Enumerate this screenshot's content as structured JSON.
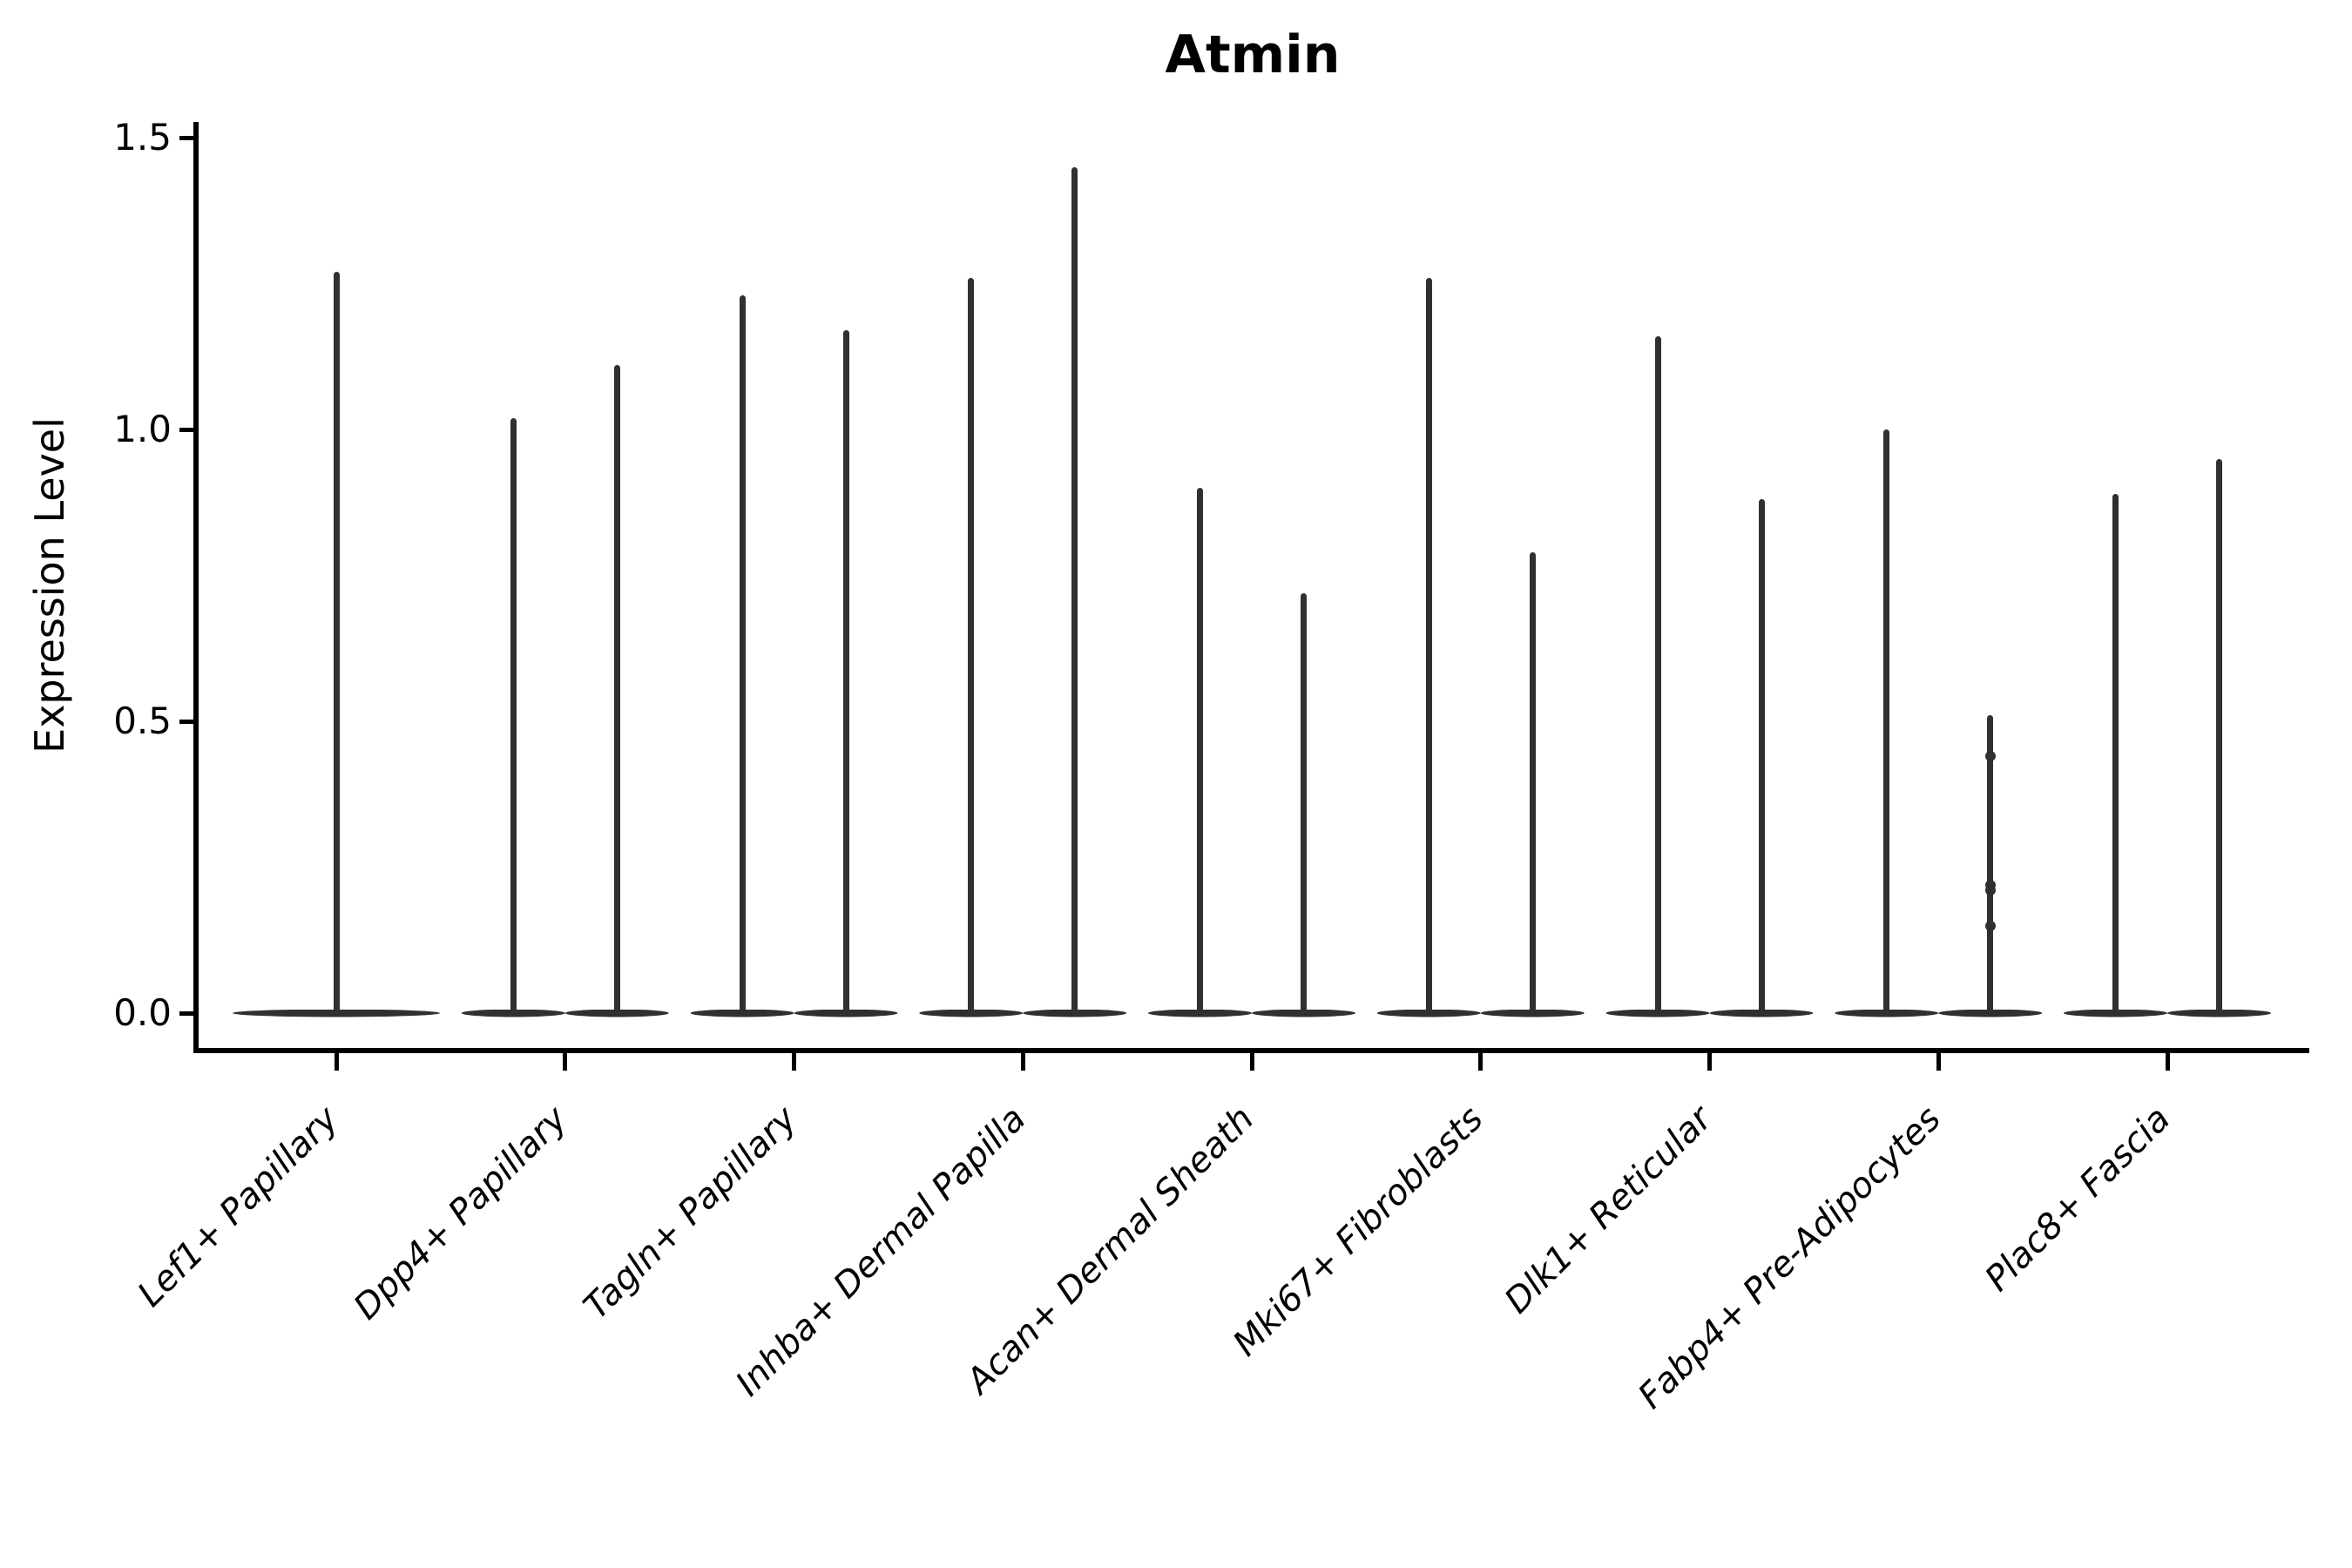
{
  "chart_data": {
    "type": "violin",
    "title": "Atmin",
    "ylabel": "Expression Level",
    "xlabel": "",
    "y_ticks": [
      "0.0",
      "0.5",
      "1.0",
      "1.5"
    ],
    "y_tick_values": [
      0.0,
      0.5,
      1.0,
      1.5
    ],
    "ylim": [
      0,
      1.53
    ],
    "grid": false,
    "legend": false,
    "categories": [
      {
        "label": "Lef1+ Papillary",
        "violins": [
          {
            "pos": "center",
            "max": 1.27
          }
        ]
      },
      {
        "label": "Dpp4+ Papillary",
        "violins": [
          {
            "pos": "left",
            "max": 1.02
          },
          {
            "pos": "right",
            "max": 1.11
          }
        ]
      },
      {
        "label": "Tagln+ Papillary",
        "violins": [
          {
            "pos": "left",
            "max": 1.23
          },
          {
            "pos": "right",
            "max": 1.17
          }
        ]
      },
      {
        "label": "Inhba+ Dermal Papilla",
        "violins": [
          {
            "pos": "left",
            "max": 1.26
          },
          {
            "pos": "right",
            "max": 1.45
          }
        ]
      },
      {
        "label": "Acan+ Dermal Sheath",
        "violins": [
          {
            "pos": "left",
            "max": 0.9
          },
          {
            "pos": "right",
            "max": 0.72
          }
        ]
      },
      {
        "label": "Mki67+ Fibroblasts",
        "violins": [
          {
            "pos": "left",
            "max": 1.26
          },
          {
            "pos": "right",
            "max": 0.79
          }
        ]
      },
      {
        "label": "Dlk1+ Reticular",
        "violins": [
          {
            "pos": "left",
            "max": 1.16
          },
          {
            "pos": "right",
            "max": 0.88
          }
        ]
      },
      {
        "label": "Fabp4+ Pre-Adipocytes",
        "violins": [
          {
            "pos": "left",
            "max": 1.0
          },
          {
            "pos": "right",
            "max": 0.51,
            "points": [
              0.44,
              0.22,
              0.21,
              0.15
            ]
          }
        ]
      },
      {
        "label": "Plac8+ Fascia",
        "violins": [
          {
            "pos": "left",
            "max": 0.89
          },
          {
            "pos": "right",
            "max": 0.95
          }
        ]
      }
    ],
    "colors": {
      "violin": "#303030",
      "axis": "#000000",
      "text": "#000000",
      "background": "#ffffff"
    }
  }
}
